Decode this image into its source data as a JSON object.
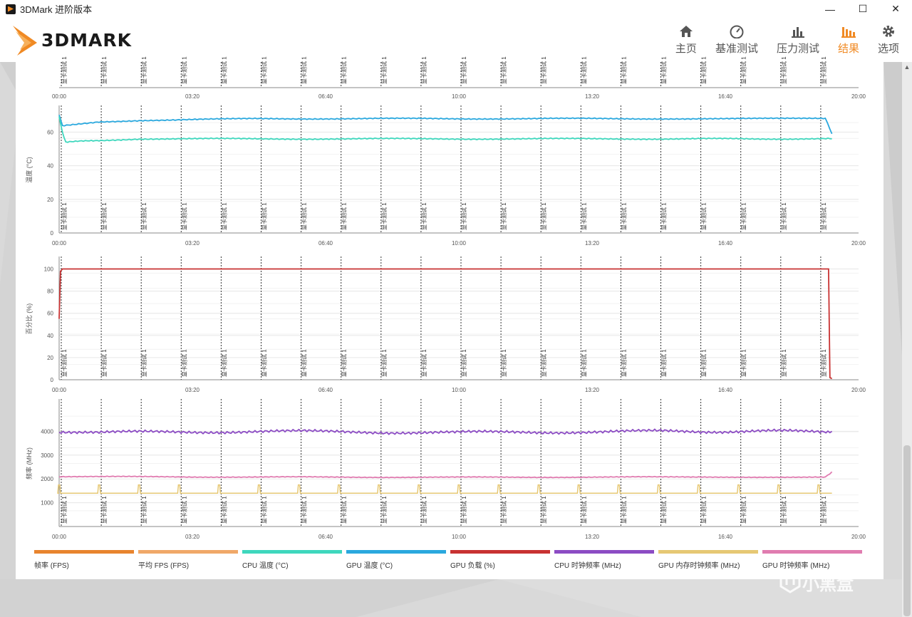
{
  "window": {
    "title": "3DMark 进阶版本",
    "minimize": "—",
    "maximize": "☐",
    "close": "✕"
  },
  "logo": {
    "text": "3DMARK"
  },
  "nav": [
    {
      "label": "主页",
      "icon": "home-icon"
    },
    {
      "label": "基准测试",
      "icon": "gauge-icon"
    },
    {
      "label": "压力测试",
      "icon": "bar-chart-icon"
    },
    {
      "label": "结果",
      "icon": "results-icon",
      "active": true
    },
    {
      "label": "选项",
      "icon": "gear-icon"
    }
  ],
  "colors": {
    "accent": "#f08a24",
    "fps": "#e8842e",
    "avg_fps": "#f0a868",
    "cpu_temp": "#3ed7bd",
    "gpu_temp": "#2aa8de",
    "gpu_load": "#c83232",
    "cpu_clock": "#8c4cc4",
    "gpu_mem_clock": "#e6c874",
    "gpu_clock": "#e07cb0"
  },
  "marker_label": "显卡测试 1",
  "x_ticks": [
    "00:00",
    "03:20",
    "06:40",
    "10:00",
    "13:20",
    "16:40",
    "20:00"
  ],
  "legend": [
    {
      "label": "帧率 (FPS)",
      "color_key": "fps"
    },
    {
      "label": "平均 FPS (FPS)",
      "color_key": "avg_fps"
    },
    {
      "label": "CPU 温度 (°C)",
      "color_key": "cpu_temp"
    },
    {
      "label": "GPU 温度 (°C)",
      "color_key": "gpu_temp"
    },
    {
      "label": "GPU 负载 (%)",
      "color_key": "gpu_load"
    },
    {
      "label": "CPU 时钟频率 (MHz)",
      "color_key": "cpu_clock"
    },
    {
      "label": "GPU 内存时钟频率 (MHz)",
      "color_key": "gpu_mem_clock"
    },
    {
      "label": "GPU 时钟频率 (MHz)",
      "color_key": "gpu_clock"
    }
  ],
  "watermark": "小黑盒",
  "chart_data": [
    {
      "type": "line",
      "ylabel": "温度 (°C)",
      "ylim": [
        0,
        75
      ],
      "y_ticks": [
        0,
        20,
        40,
        60
      ],
      "xlim_seconds": [
        0,
        1200
      ],
      "grid": true,
      "series": [
        {
          "name": "GPU 温度 (°C)",
          "color_key": "gpu_temp",
          "x": [
            0,
            5,
            60,
            120,
            300,
            600,
            900,
            1150,
            1160
          ],
          "y": [
            70,
            64,
            66,
            67,
            68,
            68,
            68,
            68,
            59
          ]
        },
        {
          "name": "CPU 温度 (°C)",
          "color_key": "cpu_temp",
          "x": [
            0,
            5,
            10,
            60,
            120,
            300,
            600,
            900,
            1160
          ],
          "y": [
            69,
            60,
            54,
            55,
            56,
            56,
            56,
            56,
            56
          ]
        }
      ]
    },
    {
      "type": "line",
      "ylabel": "百分比 (%)",
      "ylim": [
        0,
        110
      ],
      "y_ticks": [
        0,
        20,
        40,
        60,
        80,
        100
      ],
      "xlim_seconds": [
        0,
        1200
      ],
      "grid": true,
      "series": [
        {
          "name": "GPU 负载 (%)",
          "color_key": "gpu_load",
          "x": [
            0,
            2,
            5,
            600,
            1155,
            1157,
            1160
          ],
          "y": [
            55,
            98,
            100,
            100,
            100,
            2,
            1
          ]
        }
      ]
    },
    {
      "type": "line",
      "ylabel": "频率 (MHz)",
      "ylim": [
        0,
        5300
      ],
      "y_ticks": [
        1000,
        2000,
        3000,
        4000
      ],
      "xlim_seconds": [
        0,
        1200
      ],
      "grid": true,
      "series": [
        {
          "name": "CPU 时钟频率 (MHz)",
          "color_key": "cpu_clock",
          "x": [
            0,
            60,
            300,
            600,
            900,
            1160
          ],
          "y": [
            4000,
            3950,
            4000,
            3950,
            4000,
            4000
          ]
        },
        {
          "name": "GPU 时钟频率 (MHz)",
          "color_key": "gpu_clock",
          "x": [
            0,
            300,
            600,
            900,
            1150,
            1160
          ],
          "y": [
            2100,
            2080,
            2070,
            2080,
            2080,
            2300
          ]
        },
        {
          "name": "GPU 内存时钟频率 (MHz)",
          "color_key": "gpu_mem_clock",
          "x": [
            0,
            1160
          ],
          "y": [
            1400,
            1400
          ]
        }
      ]
    }
  ]
}
